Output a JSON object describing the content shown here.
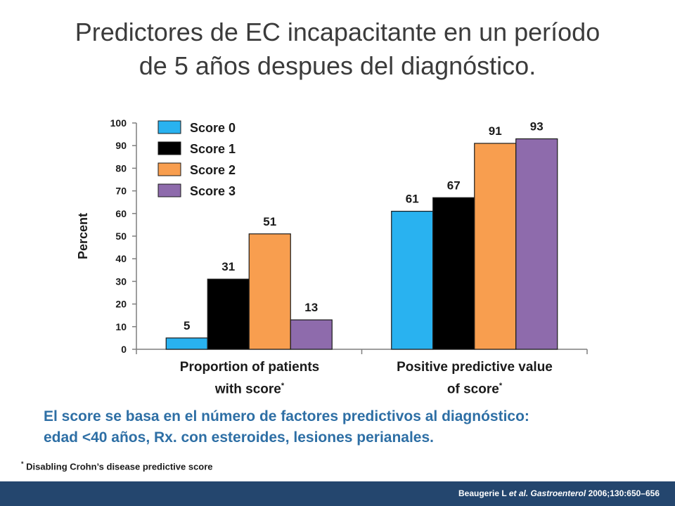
{
  "title": {
    "line1": "Predictores de EC incapacitante en un período",
    "line2": "de 5 años despues del diagnóstico."
  },
  "chart_data": {
    "type": "bar",
    "categories": [
      "Proportion of patients with score",
      "Positive predictive value of score"
    ],
    "category_lines": [
      [
        "Proportion of patients",
        "with score"
      ],
      [
        "Positive predictive value",
        "of score"
      ]
    ],
    "category_mark": "*",
    "series": [
      {
        "name": "Score 0",
        "values": [
          5,
          61
        ],
        "color": "#29b2f0"
      },
      {
        "name": "Score 1",
        "values": [
          31,
          67
        ],
        "color": "#000000"
      },
      {
        "name": "Score 2",
        "values": [
          51,
          91
        ],
        "color": "#f89e4f"
      },
      {
        "name": "Score 3",
        "values": [
          13,
          93
        ],
        "color": "#8e6bac"
      }
    ],
    "ylabel": "Percent",
    "ylim": [
      0,
      100
    ],
    "yticks": [
      0,
      10,
      20,
      30,
      40,
      50,
      60,
      70,
      80,
      90,
      100
    ],
    "legend_position": "top-left",
    "grid": false,
    "data_labels": true
  },
  "note": {
    "line1": "El score se basa en el número de factores predictivos al diagnóstico:",
    "line2": "edad <40 años, Rx. con esteroides, lesiones perianales."
  },
  "footnote": {
    "mark": "*",
    "text": "Disabling Crohn’s disease predictive score"
  },
  "citation": {
    "authors": "Beaugerie L",
    "etal": "et al.",
    "journal": "Gastroenterol",
    "ref": "2006;130:650–656"
  },
  "colors": {
    "footer_bar": "#24466e",
    "note_text": "#2e6fa5",
    "title_text": "#3b3b3b"
  }
}
